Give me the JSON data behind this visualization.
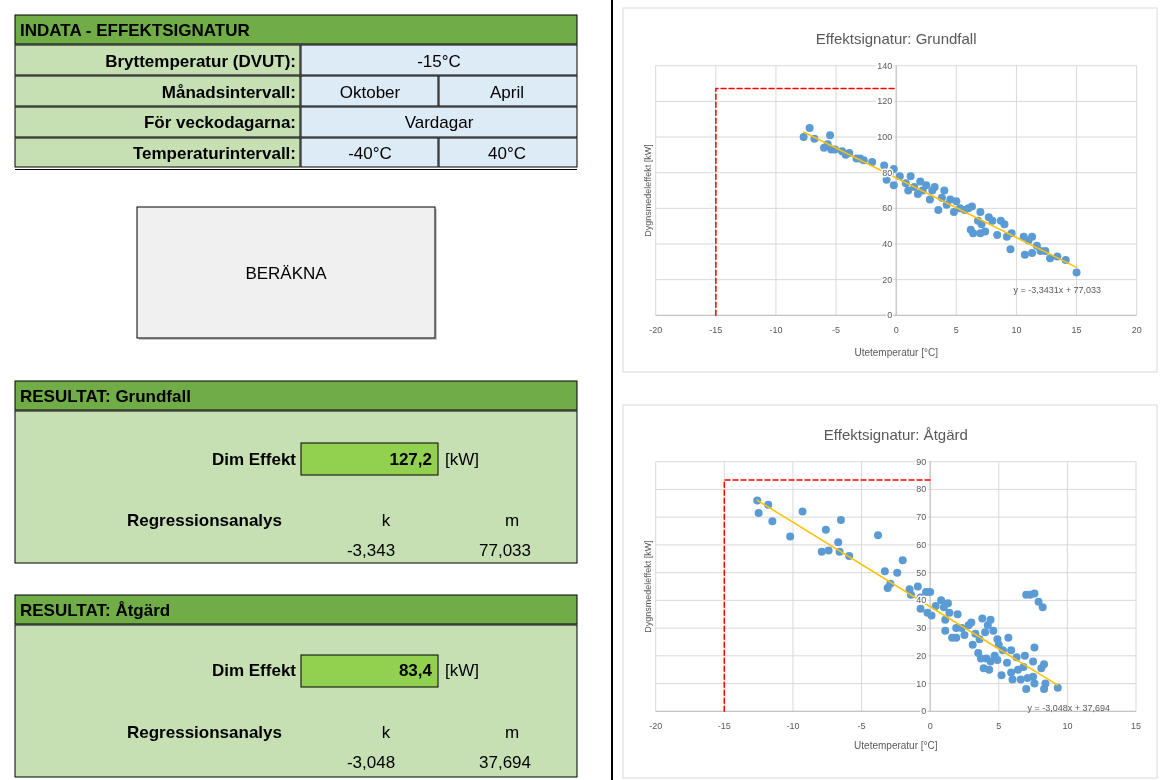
{
  "chart_data": [
    {
      "type": "other",
      "title": "INDATA - EFFEKTSIGNATUR",
      "annotations": [
        "Bryttemperatur (DVUT):",
        "-15°C",
        "Månadsintervall:",
        "Oktober",
        "April",
        "För veckodagarna:",
        "Vardagar",
        "Temperaturintervall:",
        "-40°C",
        "40°C",
        "BERÄKNA",
        "RESULTAT: Grundfall",
        "Dim Effekt",
        "127,2",
        "[kW]",
        "Regressionsanalys",
        "k",
        "m",
        "-3,343",
        "77,033",
        "RESULTAT: Åtgärd",
        "Dim Effekt",
        "83,4",
        "[kW]",
        "Regressionsanalys",
        "k",
        "m",
        "-3,048",
        "37,694"
      ]
    },
    {
      "type": "scatter",
      "title": "Effektsignatur: Grundfall",
      "xlabel": "Utetemperatur [°C]",
      "ylabel": "Dygnsmedeleffekt [kW]",
      "xlim": [
        -20,
        20
      ],
      "ylim": [
        0,
        140
      ],
      "xticks": [
        -20,
        -15,
        -10,
        -5,
        0,
        5,
        10,
        15,
        20
      ],
      "yticks": [
        0,
        20,
        40,
        60,
        80,
        100,
        120,
        140
      ],
      "grid": true,
      "annotations": [
        "y = -3,3431x + 77,033"
      ],
      "series": [
        {
          "type": "scatter",
          "marker": "circle",
          "color": "#5b9bd5",
          "x": [
            -7.7,
            -7.2,
            -6.8,
            -5.5,
            -6,
            -5.7,
            -5.4,
            -5.1,
            -4.5,
            -4.2,
            -3.9,
            -3.3,
            -3,
            -2.7,
            -2,
            -1,
            -0.2,
            -0.8,
            -0.5,
            -0.2,
            0.3,
            0.8,
            1,
            1.2,
            1.5,
            1.8,
            2,
            2.2,
            2.5,
            2.8,
            3,
            3.2,
            3.5,
            3.8,
            4,
            4.2,
            4.5,
            4.8,
            5,
            5.3,
            5.7,
            6,
            6.3,
            6.2,
            6.4,
            6.8,
            7,
            7.1,
            7,
            7.4,
            7.7,
            8,
            8.4,
            8.7,
            9,
            9.2,
            9.5,
            9.6,
            10.6,
            10.7,
            11,
            11.3,
            11.3,
            11.7,
            12,
            12.4,
            12.8,
            13.4,
            14.1,
            15
          ],
          "values": [
            100,
            105,
            99,
            101,
            94,
            96,
            93,
            93,
            92,
            90,
            91,
            88,
            88,
            87,
            86,
            84,
            82,
            76,
            80,
            73,
            78,
            74,
            70,
            78,
            72,
            68,
            75,
            70,
            73,
            65,
            70,
            72,
            59,
            66,
            70,
            62,
            65,
            58,
            64,
            60,
            59,
            60,
            61,
            48,
            46,
            53,
            58,
            51,
            46,
            47,
            55,
            53,
            45,
            53,
            51,
            44,
            37,
            46,
            44,
            34,
            42,
            44,
            35,
            39,
            36,
            36,
            32,
            33,
            31,
            24
          ]
        },
        {
          "type": "line",
          "color": "#ffc000",
          "line_style": "solid",
          "x": [
            -7.7,
            15
          ],
          "values": [
            102.8,
            26.9
          ]
        },
        {
          "type": "line",
          "color": "#ff0000",
          "line_style": "dashed",
          "x": [
            -15,
            -15,
            0
          ],
          "values": [
            0,
            127.2,
            127.2
          ]
        }
      ]
    },
    {
      "type": "scatter",
      "title": "Effektsignatur: Åtgärd",
      "xlabel": "Utetemperatur [°C]",
      "ylabel": "Dygnsmedeleffekt [kW]",
      "xlim": [
        -20,
        15
      ],
      "ylim": [
        0,
        90
      ],
      "xticks": [
        -20,
        -15,
        -10,
        -5,
        0,
        5,
        10,
        15
      ],
      "yticks": [
        0,
        10,
        20,
        30,
        40,
        50,
        60,
        70,
        80,
        90
      ],
      "grid": true,
      "annotations": [
        "y = -3,048x + 37,694"
      ],
      "series": [
        {
          "type": "scatter",
          "marker": "circle",
          "color": "#5b9bd5",
          "x": [
            -12.6,
            -12.5,
            -11.8,
            -11.5,
            -10.2,
            -9.3,
            -7.9,
            -7.6,
            -7.4,
            -6.7,
            -6.6,
            -6.5,
            -5.9,
            -3.8,
            -3.3,
            -3.1,
            -2.9,
            -2.4,
            -2,
            -1.5,
            -1.4,
            -0.9,
            -0.7,
            -0.7,
            -0.3,
            -0.2,
            0,
            0.1,
            0.4,
            0.8,
            1,
            1.1,
            1.1,
            1.3,
            1.4,
            1.6,
            1.9,
            1.9,
            2,
            2.3,
            2.5,
            2.8,
            3,
            3.1,
            3.3,
            3.5,
            3.6,
            3.7,
            3.8,
            3.9,
            4,
            4.1,
            4.2,
            4.3,
            4.4,
            4.4,
            4.6,
            4.7,
            4.9,
            4.9,
            5,
            5.2,
            5.3,
            5.6,
            5.7,
            5.9,
            5.9,
            6,
            6.3,
            6.4,
            6.6,
            6.8,
            6.9,
            7,
            7,
            7.1,
            7.3,
            7.5,
            7.5,
            7.6,
            7.6,
            7.6,
            7.9,
            8.1,
            8.2,
            8.3,
            8.3,
            8.4,
            9.3
          ],
          "values": [
            76,
            71.5,
            74.5,
            68.5,
            63,
            72,
            57.5,
            65.5,
            58,
            61,
            57.5,
            69,
            56,
            63.5,
            50.5,
            44.5,
            46,
            50,
            54.5,
            44,
            42,
            45,
            41,
            37,
            43,
            35.5,
            43,
            34.5,
            38,
            40,
            37.5,
            33,
            29,
            39,
            35.5,
            26.5,
            26.5,
            30,
            35,
            30,
            27.5,
            31,
            32,
            24,
            28,
            21,
            26,
            19,
            33.5,
            15.5,
            28.5,
            19,
            31,
            15,
            33,
            18,
            29,
            20,
            26,
            18.5,
            24,
            13,
            22,
            17.5,
            26.5,
            14,
            22,
            11.5,
            19.5,
            15,
            11.5,
            16,
            20,
            8,
            42,
            12,
            42,
            12.5,
            18,
            42.5,
            23,
            10,
            39.5,
            15.5,
            37.5,
            17,
            8,
            10,
            8.5
          ]
        },
        {
          "type": "line",
          "color": "#ffc000",
          "line_style": "solid",
          "x": [
            -12.6,
            9.3
          ],
          "values": [
            76.1,
            9.4
          ]
        },
        {
          "type": "line",
          "color": "#ff0000",
          "line_style": "dashed",
          "x": [
            -15,
            -15,
            0
          ],
          "values": [
            0,
            83.4,
            83.4
          ]
        }
      ]
    }
  ]
}
